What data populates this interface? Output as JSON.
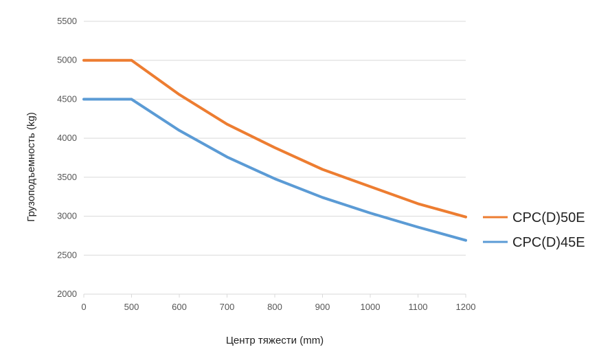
{
  "chart_data": {
    "type": "line",
    "title": "",
    "xlabel": "Центр тяжести (mm)",
    "ylabel": "Грузоподъемность (kg)",
    "xlim": [
      0,
      1200
    ],
    "ylim": [
      2000,
      5500
    ],
    "x_ticks": [
      0,
      500,
      600,
      700,
      800,
      900,
      1000,
      1100,
      1200
    ],
    "y_ticks": [
      2000,
      2500,
      3000,
      3500,
      4000,
      4500,
      5000,
      5500
    ],
    "grid": "horizontal",
    "legend_position": "right",
    "series": [
      {
        "name": "CPC(D)50E",
        "color": "#ED7D31",
        "x": [
          0,
          500,
          600,
          700,
          800,
          900,
          1000,
          1100,
          1200
        ],
        "y": [
          5000,
          5000,
          4560,
          4180,
          3880,
          3600,
          3380,
          3160,
          2990
        ]
      },
      {
        "name": "CPC(D)45E",
        "color": "#5B9BD5",
        "x": [
          0,
          500,
          600,
          700,
          800,
          900,
          1000,
          1100,
          1200
        ],
        "y": [
          4500,
          4500,
          4100,
          3760,
          3480,
          3240,
          3040,
          2860,
          2690
        ]
      }
    ]
  }
}
